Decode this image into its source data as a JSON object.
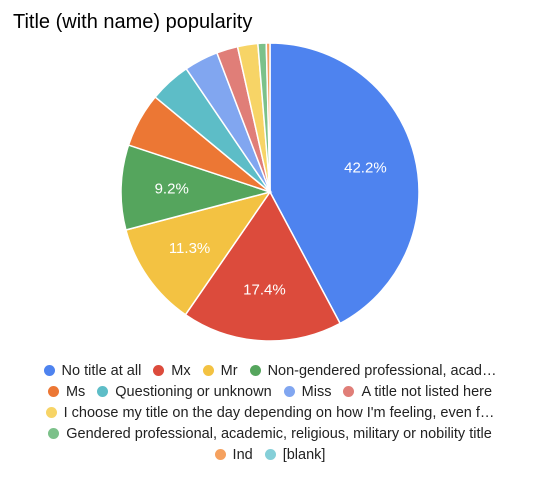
{
  "chart_data": {
    "type": "pie",
    "title": "Title (with name) popularity",
    "slices": [
      {
        "label": "No title at all",
        "value": 42.2,
        "color": "#4e83ef",
        "display": "42.2%"
      },
      {
        "label": "Mx",
        "value": 17.4,
        "color": "#dc4b3c",
        "display": "17.4%"
      },
      {
        "label": "Mr",
        "value": 11.3,
        "color": "#f3c242",
        "display": "11.3%"
      },
      {
        "label": "Non-gendered professional, acad…",
        "value": 9.2,
        "color": "#55a55d",
        "display": "9.2%"
      },
      {
        "label": "Ms",
        "value": 5.9,
        "color": "#ec7734",
        "display": ""
      },
      {
        "label": "Questioning or unknown",
        "value": 4.5,
        "color": "#5dbdc7",
        "display": ""
      },
      {
        "label": "Miss",
        "value": 3.7,
        "color": "#81a6f0",
        "display": ""
      },
      {
        "label": "A title not listed here",
        "value": 2.3,
        "color": "#e07e78",
        "display": ""
      },
      {
        "label": "I choose my title on the day depending on how I'm feeling, even f…",
        "value": 2.2,
        "color": "#f7d466",
        "display": ""
      },
      {
        "label": "Gendered professional, academic, religious, military or nobility title",
        "value": 0.9,
        "color": "#7cc18a",
        "display": ""
      },
      {
        "label": "Ind",
        "value": 0.4,
        "color": "#f5a15f",
        "display": ""
      },
      {
        "label": "[blank]",
        "value": 0.0,
        "color": "#85cfd8",
        "display": ""
      }
    ],
    "legend_position": "bottom"
  }
}
